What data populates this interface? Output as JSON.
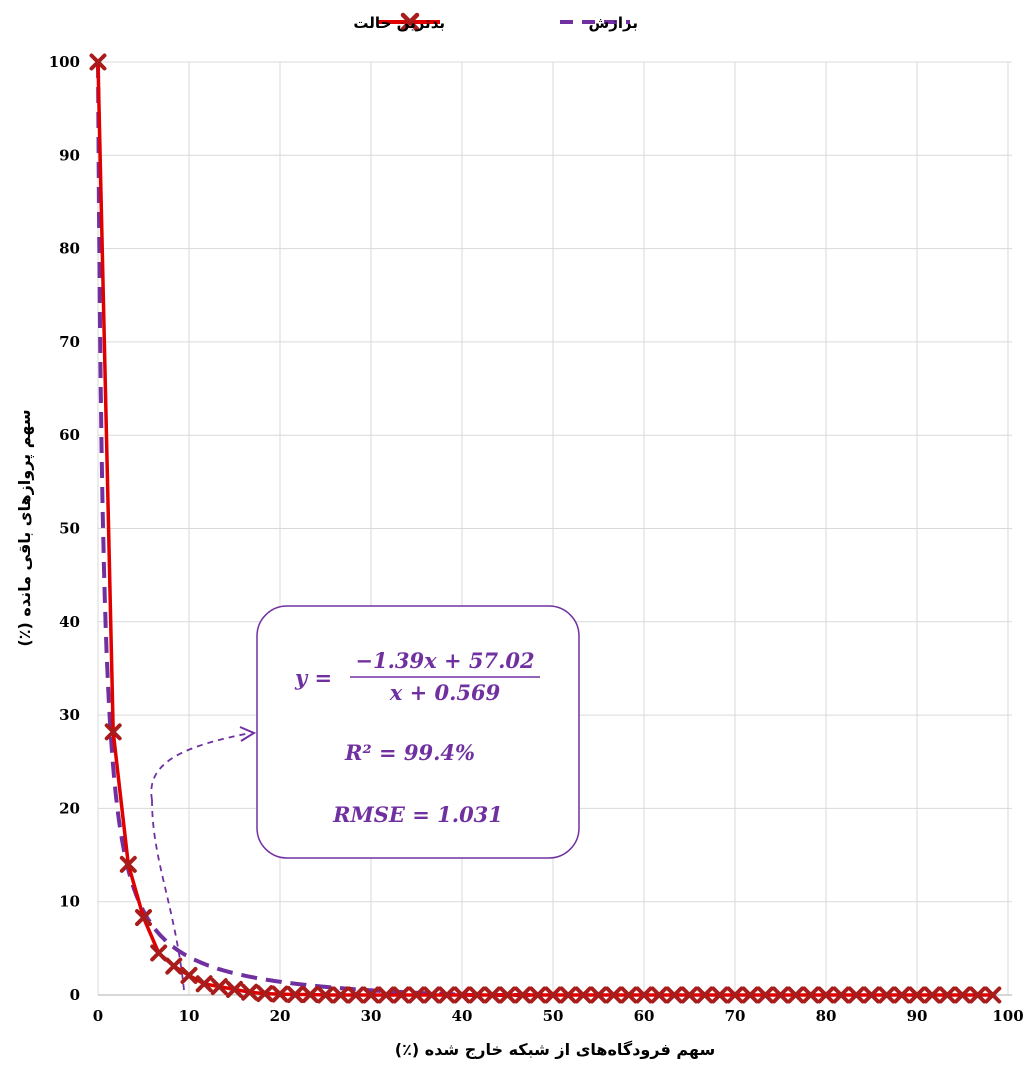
{
  "chart_data": {
    "type": "line",
    "title": "",
    "xlabel": "سهم فرودگاه‌های از شبکه خارج شده (٪)",
    "ylabel": "سهم پروازهای باقی مانده (٪)",
    "xlim": [
      0,
      100
    ],
    "ylim": [
      0,
      100
    ],
    "xticks": [
      0,
      10,
      20,
      30,
      40,
      50,
      60,
      70,
      80,
      90,
      100
    ],
    "yticks": [
      0,
      10,
      20,
      30,
      40,
      50,
      60,
      70,
      80,
      90,
      100
    ],
    "grid": true,
    "legend_position": "top",
    "series": [
      {
        "name": "بدترین حالت",
        "style": "solid-line-x-markers",
        "color": "#e00000",
        "marker_color": "#a81c1c",
        "x": [
          0,
          1.67,
          3.33,
          5,
          6.67,
          8.33,
          10,
          11.67,
          13.33,
          15,
          16.67,
          18.33,
          20,
          21.67,
          23.33,
          25,
          26.67,
          28.33,
          30,
          31.67,
          33.33,
          35,
          36.67,
          38.33,
          40,
          41.67,
          43.33,
          45,
          46.67,
          48.33,
          50,
          51.67,
          53.33,
          55,
          56.67,
          58.33,
          60,
          61.67,
          63.33,
          65,
          66.67,
          68.33,
          70,
          71.67,
          73.33,
          75,
          76.67,
          78.33,
          80,
          81.67,
          83.33,
          85,
          86.67,
          88.33,
          90,
          91.67,
          93.33,
          95,
          96.67,
          98.33
        ],
        "y": [
          100,
          28.2,
          14,
          8.3,
          4.5,
          3.1,
          2.1,
          1.2,
          0.9,
          0.6,
          0.3,
          0.15,
          0.1,
          0.05,
          0.05,
          0,
          0,
          0,
          0,
          0,
          0,
          0,
          0,
          0,
          0,
          0,
          0,
          0,
          0,
          0,
          0,
          0,
          0,
          0,
          0,
          0,
          0,
          0,
          0,
          0,
          0,
          0,
          0,
          0,
          0,
          0,
          0,
          0,
          0,
          0,
          0,
          0,
          0,
          0,
          0,
          0,
          0,
          0,
          0,
          0
        ]
      },
      {
        "name": "برازش",
        "style": "dashed-line",
        "color": "#7030a0",
        "model": {
          "a": -1.39,
          "b": 57.02,
          "c": 0.569
        },
        "x_range": [
          0,
          48
        ]
      }
    ],
    "annotation": {
      "lines": [
        {
          "lhs": "y =",
          "numerator": "−1.39x + 57.02",
          "denominator": "x + 0.569"
        },
        {
          "text": "R² = 99.4%"
        },
        {
          "text": "RMSE = 1.031"
        }
      ],
      "color": "#7030a0"
    }
  }
}
